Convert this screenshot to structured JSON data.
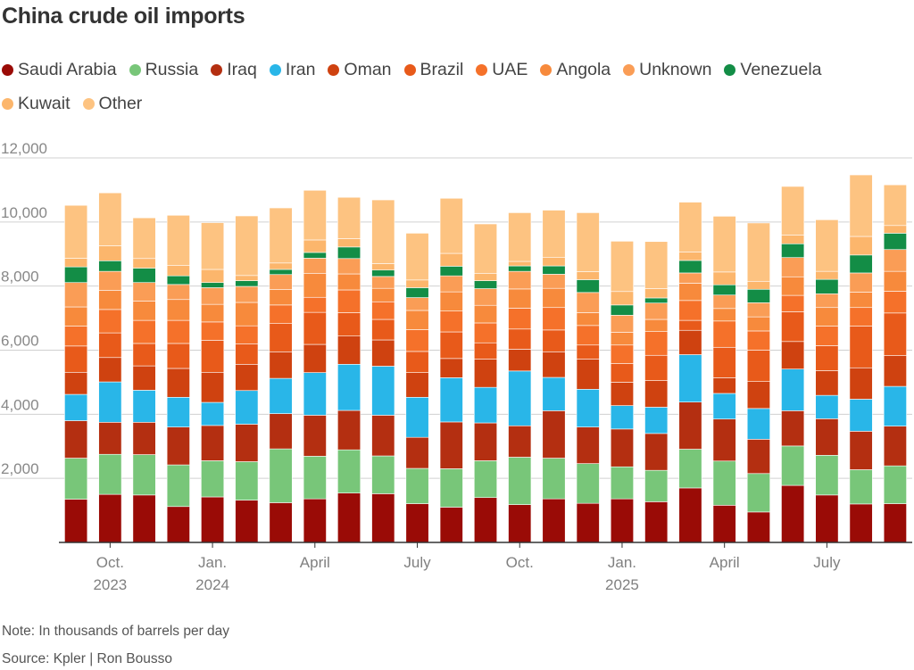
{
  "title": "China crude oil imports",
  "note": "Note: In thousands of barrels per day",
  "source": "Source: Kpler | Ron Bousso",
  "chart_data": {
    "type": "bar",
    "stacked": true,
    "title": "China crude oil imports",
    "xlabel": "",
    "ylabel": "",
    "ylim": [
      0,
      12000
    ],
    "yticks": [
      0,
      2000,
      4000,
      6000,
      8000,
      10000,
      12000
    ],
    "ytick_labels": [
      "",
      "2,000",
      "4,000",
      "6,000",
      "8,000",
      "10,000",
      "12,000"
    ],
    "grid": true,
    "legend_position": "top",
    "categories": [
      "2023-08",
      "2023-09",
      "2023-10",
      "2023-11",
      "2023-12",
      "2024-01",
      "2024-02",
      "2024-03",
      "2024-04",
      "2024-05",
      "2024-06",
      "2024-07",
      "2024-08",
      "2024-09",
      "2024-10",
      "2024-11",
      "2024-12",
      "2025-01",
      "2025-02",
      "2025-03",
      "2025-04",
      "2025-05",
      "2025-06",
      "2025-07",
      "2025-08"
    ],
    "xtick_labels": [
      {
        "category": "2023-09",
        "lines": [
          "Oct.",
          "2023"
        ]
      },
      {
        "category": "2023-12",
        "lines": [
          "Jan.",
          "2024"
        ]
      },
      {
        "category": "2024-03",
        "lines": [
          "April"
        ]
      },
      {
        "category": "2024-06",
        "lines": [
          "July"
        ]
      },
      {
        "category": "2024-09",
        "lines": [
          "Oct."
        ]
      },
      {
        "category": "2024-12",
        "lines": [
          "Jan.",
          "2025"
        ]
      },
      {
        "category": "2025-03",
        "lines": [
          "April"
        ]
      },
      {
        "category": "2025-06",
        "lines": [
          "July"
        ]
      }
    ],
    "series": [
      {
        "name": "Saudi Arabia",
        "color": "#9a0b06",
        "values": [
          1350,
          1500,
          1480,
          1120,
          1420,
          1320,
          1240,
          1360,
          1540,
          1520,
          1210,
          1100,
          1400,
          1180,
          1360,
          1220,
          1360,
          1270,
          1700,
          1160,
          950,
          1780,
          1480,
          1200,
          1210
        ]
      },
      {
        "name": "Russia",
        "color": "#78c679",
        "values": [
          1280,
          1250,
          1260,
          1300,
          1130,
          1200,
          1680,
          1330,
          1350,
          1180,
          1100,
          1200,
          1150,
          1480,
          1270,
          1240,
          1000,
          980,
          1210,
          1380,
          1200,
          1230,
          1240,
          1070,
          1180
        ]
      },
      {
        "name": "Iraq",
        "color": "#b42f11",
        "values": [
          1170,
          1000,
          1010,
          1180,
          1100,
          1170,
          1100,
          1280,
          1230,
          1270,
          970,
          1460,
          1180,
          980,
          1480,
          1140,
          1180,
          1150,
          1470,
          1310,
          1070,
          1100,
          1140,
          1200,
          1240
        ]
      },
      {
        "name": "Iran",
        "color": "#29b6e8",
        "values": [
          820,
          1260,
          1000,
          930,
          720,
          1050,
          1100,
          1330,
          1440,
          1530,
          1250,
          1380,
          1110,
          1710,
          1040,
          1180,
          730,
          820,
          1480,
          800,
          960,
          1300,
          730,
          1000,
          1240
        ]
      },
      {
        "name": "Oman",
        "color": "#cf4210",
        "values": [
          690,
          760,
          760,
          900,
          940,
          820,
          830,
          880,
          880,
          820,
          770,
          600,
          880,
          680,
          800,
          940,
          730,
          830,
          760,
          490,
          840,
          860,
          770,
          980,
          960
        ]
      },
      {
        "name": "Brazil",
        "color": "#e85a1a",
        "values": [
          820,
          770,
          700,
          780,
          1000,
          640,
          880,
          1000,
          730,
          640,
          660,
          830,
          510,
          630,
          680,
          440,
          580,
          790,
          310,
          950,
          980,
          930,
          780,
          1300,
          1330
        ]
      },
      {
        "name": "UAE",
        "color": "#f5712a",
        "values": [
          620,
          730,
          720,
          720,
          570,
          560,
          580,
          470,
          710,
          550,
          680,
          650,
          620,
          650,
          700,
          610,
          580,
          740,
          620,
          820,
          600,
          510,
          610,
          580,
          680
        ]
      },
      {
        "name": "Angola",
        "color": "#f78a3c",
        "values": [
          600,
          600,
          600,
          650,
          550,
          730,
          480,
          740,
          500,
          420,
          600,
          600,
          550,
          600,
          600,
          400,
          400,
          380,
          540,
          390,
          440,
          580,
          580,
          480,
          620
        ]
      },
      {
        "name": "Unknown",
        "color": "#fa9d56",
        "values": [
          760,
          590,
          580,
          470,
          520,
          500,
          470,
          480,
          480,
          370,
          400,
          500,
          520,
          550,
          440,
          630,
          530,
          510,
          320,
          420,
          440,
          600,
          430,
          600,
          680
        ]
      },
      {
        "name": "Venezuela",
        "color": "#138d46",
        "values": [
          490,
          330,
          450,
          270,
          160,
          180,
          160,
          180,
          360,
          200,
          310,
          300,
          250,
          170,
          260,
          400,
          320,
          160,
          390,
          320,
          420,
          430,
          450,
          560,
          510
        ]
      },
      {
        "name": "Kuwait",
        "color": "#fcb66c",
        "values": [
          270,
          470,
          300,
          330,
          410,
          160,
          200,
          390,
          260,
          200,
          240,
          400,
          220,
          140,
          260,
          250,
          420,
          290,
          260,
          400,
          250,
          270,
          250,
          580,
          240
        ]
      },
      {
        "name": "Other",
        "color": "#fdc381",
        "values": [
          1650,
          1650,
          1270,
          1560,
          1460,
          1860,
          1720,
          1550,
          1290,
          1990,
          1460,
          1720,
          1550,
          1520,
          1480,
          1840,
          1570,
          1470,
          1560,
          1740,
          1820,
          1520,
          1610,
          1920,
          1270
        ]
      }
    ]
  }
}
